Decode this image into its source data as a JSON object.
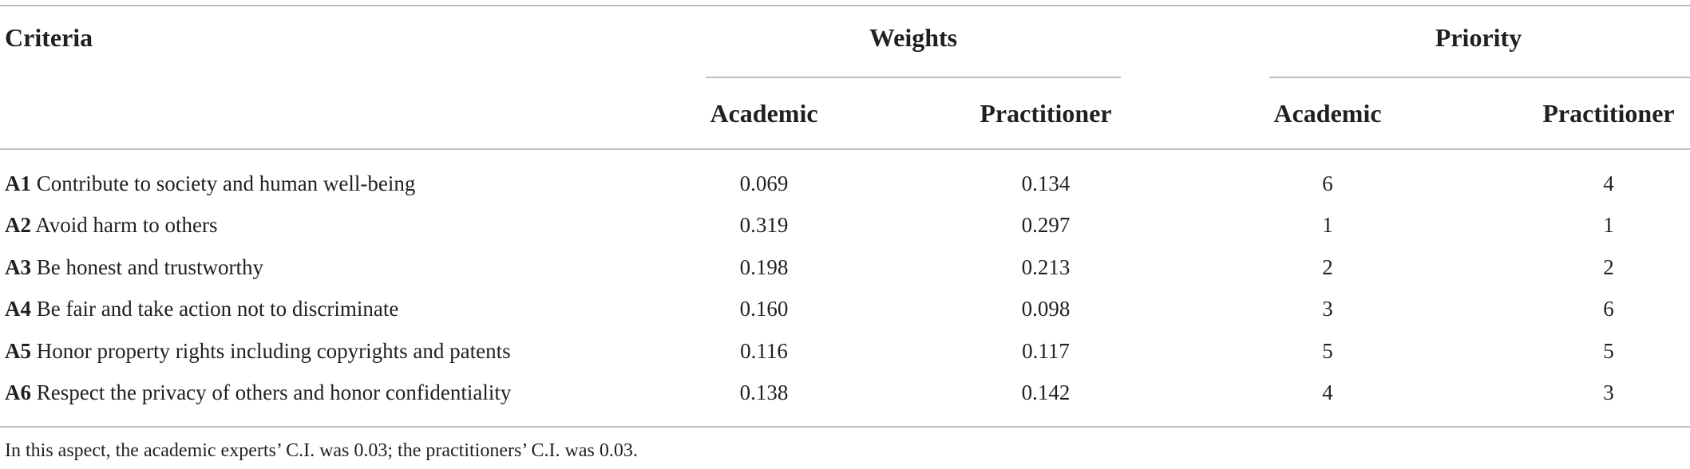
{
  "table": {
    "header": {
      "criteria": "Criteria",
      "weights": "Weights",
      "priority": "Priority",
      "weights_academic": "Academic",
      "weights_practitioner": "Practitioner",
      "priority_academic": "Academic",
      "priority_practitioner": "Practitioner"
    },
    "rows": [
      {
        "code": "A1",
        "label": "Contribute to society and human well-being",
        "w_academic": "0.069",
        "w_practitioner": "0.134",
        "p_academic": "6",
        "p_practitioner": "4"
      },
      {
        "code": "A2",
        "label": "Avoid harm to others",
        "w_academic": "0.319",
        "w_practitioner": "0.297",
        "p_academic": "1",
        "p_practitioner": "1"
      },
      {
        "code": "A3",
        "label": "Be honest and trustworthy",
        "w_academic": "0.198",
        "w_practitioner": "0.213",
        "p_academic": "2",
        "p_practitioner": "2"
      },
      {
        "code": "A4",
        "label": "Be fair and take action not to discriminate",
        "w_academic": "0.160",
        "w_practitioner": "0.098",
        "p_academic": "3",
        "p_practitioner": "6"
      },
      {
        "code": "A5",
        "label": "Honor property rights including copyrights and patents",
        "w_academic": "0.116",
        "w_practitioner": "0.117",
        "p_academic": "5",
        "p_practitioner": "5"
      },
      {
        "code": "A6",
        "label": "Respect the privacy of others and honor confidentiality",
        "w_academic": "0.138",
        "w_practitioner": "0.142",
        "p_academic": "4",
        "p_practitioner": "3"
      }
    ],
    "footnote": "In this aspect, the academic experts’ C.I. was 0.03; the practitioners’ C.I. was 0.03."
  }
}
